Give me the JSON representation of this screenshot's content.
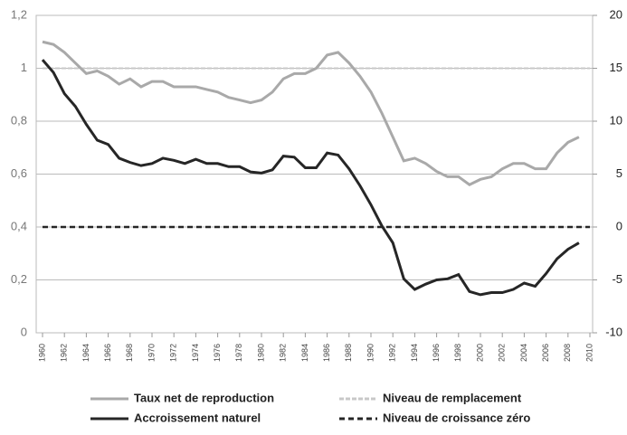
{
  "chart_data": {
    "type": "line",
    "x": [
      1960,
      1961,
      1962,
      1963,
      1964,
      1965,
      1966,
      1967,
      1968,
      1969,
      1970,
      1971,
      1972,
      1973,
      1974,
      1975,
      1976,
      1977,
      1978,
      1979,
      1980,
      1981,
      1982,
      1983,
      1984,
      1985,
      1986,
      1987,
      1988,
      1989,
      1990,
      1991,
      1992,
      1993,
      1994,
      1995,
      1996,
      1997,
      1998,
      1999,
      2000,
      2001,
      2002,
      2003,
      2004,
      2005,
      2006,
      2007,
      2008,
      2009
    ],
    "xlim": [
      1960,
      2010
    ],
    "xticks": [
      1960,
      1962,
      1964,
      1966,
      1968,
      1970,
      1972,
      1974,
      1976,
      1978,
      1980,
      1982,
      1984,
      1986,
      1988,
      1990,
      1992,
      1994,
      1996,
      1998,
      2000,
      2002,
      2004,
      2006,
      2008,
      2010
    ],
    "ylim": [
      0,
      1.2
    ],
    "yticks": [
      0,
      {
        "value": 0.2,
        "label": "0,2"
      },
      {
        "value": 0.4,
        "label": "0,4"
      },
      {
        "value": 0.6,
        "label": "0,6"
      },
      {
        "value": 0.8,
        "label": "0,8"
      },
      1,
      {
        "value": 1.2,
        "label": "1,2"
      }
    ],
    "y2lim": [
      -10,
      20
    ],
    "y2ticks": [
      -10,
      -5,
      0,
      5,
      10,
      15,
      20
    ],
    "grid": true,
    "series": [
      {
        "name": "Taux net de reproduction",
        "color": "#a9a9a9",
        "axis": "y",
        "values": [
          1.1,
          1.09,
          1.06,
          1.02,
          0.98,
          0.99,
          0.97,
          0.94,
          0.96,
          0.93,
          0.95,
          0.95,
          0.93,
          0.93,
          0.93,
          0.92,
          0.91,
          0.89,
          0.88,
          0.87,
          0.88,
          0.91,
          0.96,
          0.98,
          0.98,
          1.0,
          1.05,
          1.06,
          1.02,
          0.97,
          0.91,
          0.83,
          0.74,
          0.65,
          0.66,
          0.64,
          0.61,
          0.59,
          0.59,
          0.56,
          0.58,
          0.59,
          0.62,
          0.64,
          0.64,
          0.62,
          0.62,
          0.68,
          0.72,
          0.74
        ]
      },
      {
        "name": "Accroissement naturel",
        "color": "#262626",
        "axis": "y2",
        "values": [
          15.8,
          14.6,
          12.6,
          11.4,
          9.7,
          8.2,
          7.8,
          6.5,
          6.1,
          5.8,
          6.0,
          6.5,
          6.3,
          6.0,
          6.4,
          6.0,
          6.0,
          5.7,
          5.7,
          5.2,
          5.1,
          5.4,
          6.7,
          6.6,
          5.6,
          5.6,
          7.0,
          6.8,
          5.5,
          3.9,
          2.1,
          0.1,
          -1.5,
          -4.9,
          -5.9,
          -5.4,
          -5.0,
          -4.9,
          -4.5,
          -6.1,
          -6.4,
          -6.2,
          -6.2,
          -5.9,
          -5.3,
          -5.6,
          -4.4,
          -3.0,
          -2.1,
          -1.5
        ]
      }
    ],
    "reference_lines": [
      {
        "name": "Niveau de remplacement",
        "color": "#c8c8c8",
        "axis": "y",
        "value": 1
      },
      {
        "name": "Niveau de croissance zéro",
        "color": "#262626",
        "axis": "y2",
        "value": 0
      }
    ]
  }
}
